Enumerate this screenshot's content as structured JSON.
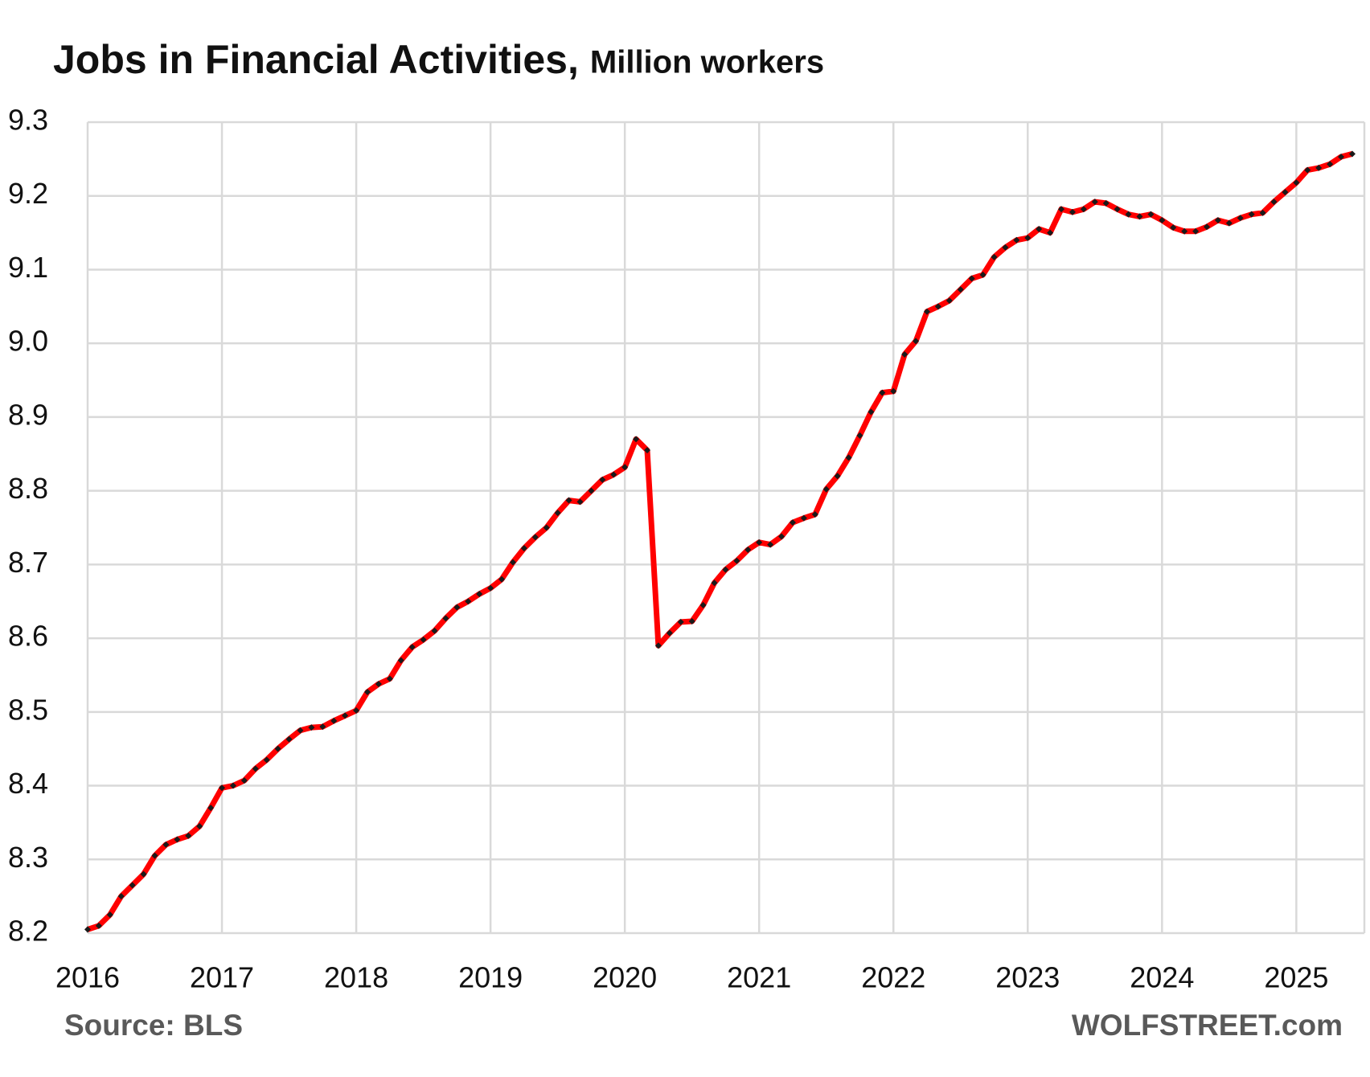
{
  "chart_data": {
    "type": "line",
    "title": "Jobs in Financial Activities,",
    "subtitle": "Million workers",
    "source": "Source: BLS",
    "credit": "WOLFSTREET.com",
    "categories": [
      "2016",
      null,
      null,
      null,
      null,
      null,
      null,
      null,
      null,
      null,
      null,
      null,
      "2017",
      null,
      null,
      null,
      null,
      null,
      null,
      null,
      null,
      null,
      null,
      null,
      "2018",
      null,
      null,
      null,
      null,
      null,
      null,
      null,
      null,
      null,
      null,
      null,
      "2019",
      null,
      null,
      null,
      null,
      null,
      null,
      null,
      null,
      null,
      null,
      null,
      "2020",
      null,
      null,
      null,
      null,
      null,
      null,
      null,
      null,
      null,
      null,
      null,
      "2021",
      null,
      null,
      null,
      null,
      null,
      null,
      null,
      null,
      null,
      null,
      null,
      "2022",
      null,
      null,
      null,
      null,
      null,
      null,
      null,
      null,
      null,
      null,
      null,
      "2023",
      null,
      null,
      null,
      null,
      null,
      null,
      null,
      null,
      null,
      null,
      null,
      "2024",
      null,
      null,
      null,
      null,
      null,
      null,
      null,
      null,
      null,
      null,
      null,
      "2025",
      null,
      null,
      null,
      null,
      null
    ],
    "series": [
      {
        "color": "#ff0000",
        "marker_color": "#1a1a1a",
        "values": [
          8.205,
          8.21,
          8.225,
          8.25,
          8.265,
          8.28,
          8.305,
          8.32,
          8.327,
          8.332,
          8.345,
          8.37,
          8.397,
          8.4,
          8.407,
          8.423,
          8.435,
          8.45,
          8.463,
          8.475,
          8.479,
          8.48,
          8.488,
          8.495,
          8.502,
          8.527,
          8.538,
          8.545,
          8.57,
          8.588,
          8.598,
          8.61,
          8.627,
          8.642,
          8.65,
          8.66,
          8.668,
          8.68,
          8.703,
          8.722,
          8.737,
          8.75,
          8.77,
          8.787,
          8.785,
          8.8,
          8.815,
          8.822,
          8.832,
          8.87,
          8.855,
          8.59,
          8.607,
          8.622,
          8.623,
          8.645,
          8.675,
          8.693,
          8.705,
          8.72,
          8.73,
          8.727,
          8.738,
          8.757,
          8.763,
          8.768,
          8.802,
          8.82,
          8.845,
          8.875,
          8.907,
          8.933,
          8.935,
          8.985,
          9.003,
          9.043,
          9.05,
          9.058,
          9.073,
          9.088,
          9.093,
          9.117,
          9.13,
          9.14,
          9.143,
          9.155,
          9.15,
          9.182,
          9.178,
          9.182,
          9.192,
          9.19,
          9.182,
          9.175,
          9.172,
          9.175,
          9.167,
          9.157,
          9.152,
          9.152,
          9.158,
          9.167,
          9.163,
          9.17,
          9.175,
          9.177,
          9.192,
          9.205,
          9.218,
          9.235,
          9.238,
          9.243,
          9.253,
          9.257
        ]
      }
    ],
    "ylim": [
      8.2,
      9.3
    ],
    "yticks": [
      {
        "value": 8.2,
        "label": "8.2"
      },
      {
        "value": 8.3,
        "label": "8.3"
      },
      {
        "value": 8.4,
        "label": "8.4"
      },
      {
        "value": 8.5,
        "label": "8.5"
      },
      {
        "value": 8.6,
        "label": "8.6"
      },
      {
        "value": 8.7,
        "label": "8.7"
      },
      {
        "value": 8.8,
        "label": "8.8"
      },
      {
        "value": 8.9,
        "label": "8.9"
      },
      {
        "value": 9,
        "label": "9.0"
      },
      {
        "value": 9.1,
        "label": "9.1"
      },
      {
        "value": 9.2,
        "label": "9.2"
      },
      {
        "value": 9.3,
        "label": "9.3"
      }
    ],
    "grid": true
  }
}
